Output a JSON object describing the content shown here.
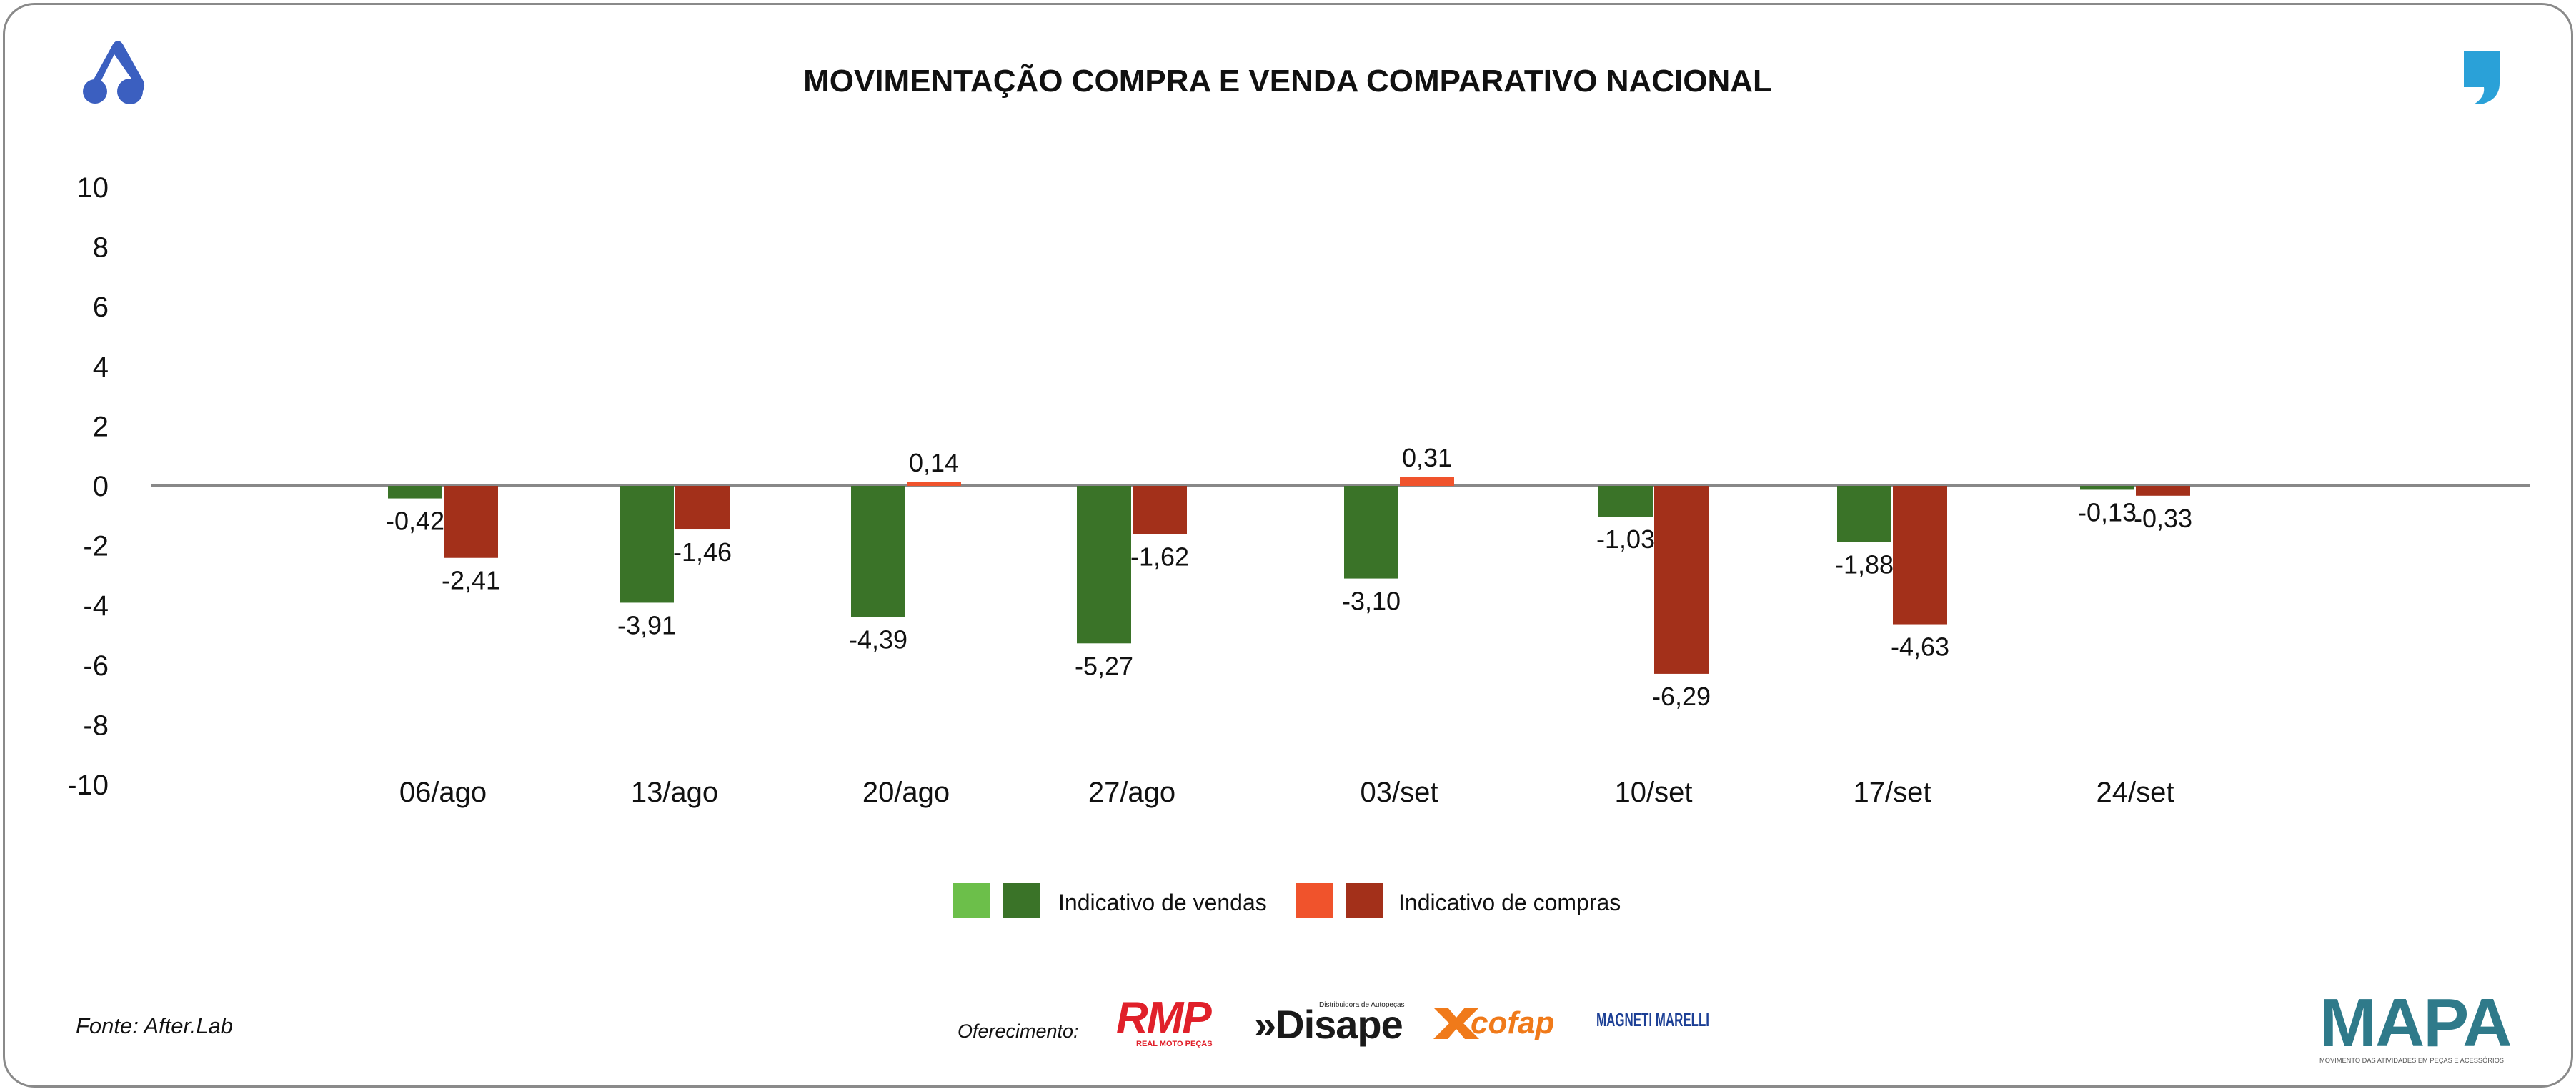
{
  "header": {
    "title": "MOVIMENTAÇÃO COMPRA E VENDA COMPARATIVO NACIONAL"
  },
  "footer": {
    "source": "Fonte: After.Lab",
    "sponsor_label": "Oferecimento:",
    "sponsors": [
      {
        "name": "RMP",
        "subtitle": "REAL MOTO PEÇAS"
      },
      {
        "name": "»Disape",
        "subtitle": "Distribuidora de Autopeças"
      },
      {
        "name": "cofap",
        "subtitle": ""
      },
      {
        "name": "MAGNETI MARELLI",
        "subtitle": ""
      }
    ],
    "mapa_logo": {
      "name": "MAPA",
      "tagline": "MOVIMENTO DAS ATIVIDADES EM PEÇAS E ACESSÓRIOS"
    }
  },
  "colors": {
    "vendas_light": "#6cbf4a",
    "vendas": "#3a7328",
    "compras_light": "#f0532c",
    "compras": "#a3301a",
    "compras_positive": "#f0532c",
    "axis": "#888888",
    "brand_blue": "#3b5fc0",
    "quote_blue": "#2aa1d8"
  },
  "chart_data": {
    "type": "bar",
    "title": "MOVIMENTAÇÃO COMPRA E VENDA COMPARATIVO NACIONAL",
    "categories": [
      "06/ago",
      "13/ago",
      "20/ago",
      "27/ago",
      "03/set",
      "10/set",
      "17/set",
      "24/set"
    ],
    "series": [
      {
        "name": "Indicativo de vendas",
        "values": [
          -0.42,
          -3.91,
          -4.39,
          -5.27,
          -3.1,
          -1.03,
          -1.88,
          -0.13
        ],
        "labels": [
          "-0,42",
          "-3,91",
          "-4,39",
          "-5,27",
          "-3,10",
          "-1,03",
          "-1,88",
          "-0,13"
        ]
      },
      {
        "name": "Indicativo de compras",
        "values": [
          -2.41,
          -1.46,
          0.14,
          -1.62,
          0.31,
          -6.29,
          -4.63,
          -0.33
        ],
        "labels": [
          "-2,41",
          "-1,46",
          "0,14",
          "-1,62",
          "0,31",
          "-6,29",
          "-4,63",
          "-0,33"
        ]
      }
    ],
    "yticks": [
      "10",
      "8",
      "6",
      "4",
      "2",
      "0",
      "-2",
      "-4",
      "-6",
      "-8",
      "-10"
    ],
    "ylim": [
      -10,
      10
    ],
    "xlabel": "",
    "ylabel": "",
    "grid": false,
    "legend_position": "bottom-center"
  }
}
